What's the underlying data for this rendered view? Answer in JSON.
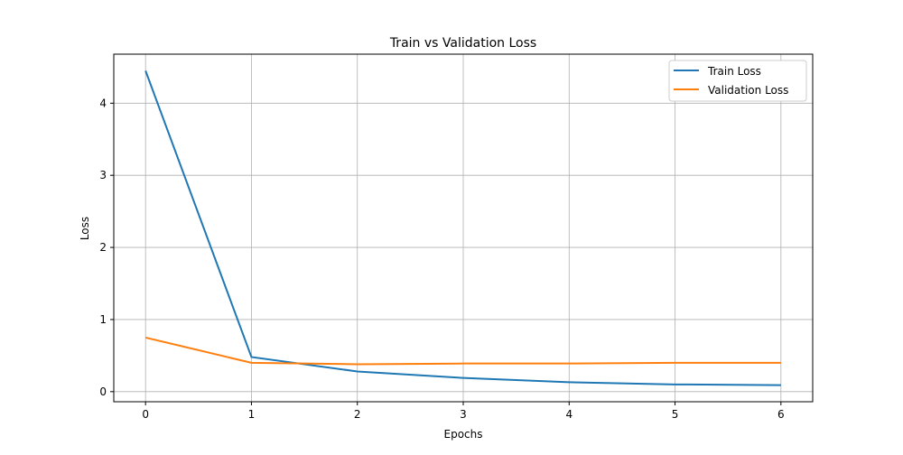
{
  "chart_data": {
    "type": "line",
    "title": "Train vs Validation Loss",
    "xlabel": "Epochs",
    "ylabel": "Loss",
    "x": [
      0,
      1,
      2,
      3,
      4,
      5,
      6
    ],
    "xlim": [
      -0.3,
      6.3
    ],
    "ylim": [
      -0.14,
      4.68
    ],
    "xticks": [
      0,
      1,
      2,
      3,
      4,
      5,
      6
    ],
    "yticks": [
      0,
      1,
      2,
      3,
      4
    ],
    "grid": true,
    "legend_position": "top-right",
    "series": [
      {
        "name": "Train Loss",
        "color": "#1f77b4",
        "values": [
          4.45,
          0.48,
          0.28,
          0.19,
          0.13,
          0.1,
          0.09
        ]
      },
      {
        "name": "Validation Loss",
        "color": "#ff7f0e",
        "values": [
          0.75,
          0.4,
          0.38,
          0.39,
          0.39,
          0.4,
          0.4
        ]
      }
    ]
  }
}
